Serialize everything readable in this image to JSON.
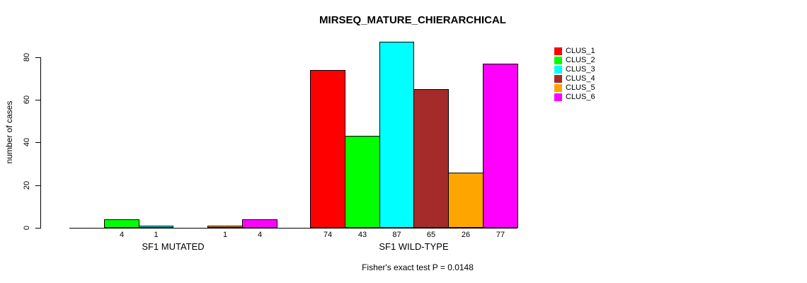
{
  "chart_data": {
    "type": "bar",
    "title": "MIRSEQ_MATURE_CHIERARCHICAL",
    "ylabel": "number of cases",
    "xlabel": "",
    "annotation": "Fisher's exact test P = 0.0148",
    "ylim": [
      0,
      80
    ],
    "yticks": [
      0,
      20,
      40,
      60,
      80
    ],
    "grid": false,
    "legend_position": "top-right",
    "categories": [
      "SF1 MUTATED",
      "SF1 WILD-TYPE"
    ],
    "series": [
      {
        "name": "CLUS_1",
        "color": "#ff0000",
        "values": [
          0,
          74
        ]
      },
      {
        "name": "CLUS_2",
        "color": "#00ff00",
        "values": [
          4,
          43
        ]
      },
      {
        "name": "CLUS_3",
        "color": "#00ffff",
        "values": [
          1,
          87
        ]
      },
      {
        "name": "CLUS_4",
        "color": "#a52a2a",
        "values": [
          0,
          65
        ]
      },
      {
        "name": "CLUS_5",
        "color": "#ffa500",
        "values": [
          1,
          26
        ]
      },
      {
        "name": "CLUS_6",
        "color": "#ff00ff",
        "values": [
          4,
          77
        ]
      }
    ],
    "bar_value_labels": [
      [
        "",
        "4",
        "1",
        "",
        "1",
        "4"
      ],
      [
        "74",
        "43",
        "87",
        "65",
        "26",
        "77"
      ]
    ]
  }
}
